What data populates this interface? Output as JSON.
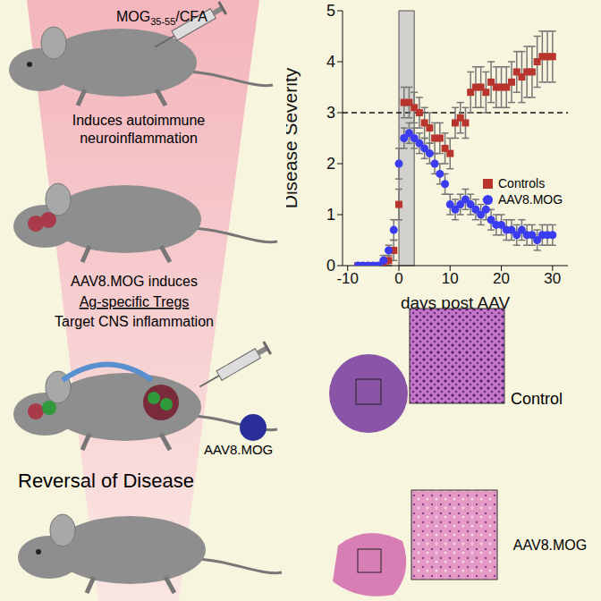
{
  "chart_data": {
    "type": "scatter",
    "xlabel": "days post AAV",
    "ylabel": "Disease Severity",
    "x": [
      -8,
      -7,
      -6,
      -5,
      -4,
      -3,
      -2,
      -1,
      0,
      1,
      2,
      3,
      4,
      5,
      6,
      7,
      8,
      9,
      10,
      11,
      12,
      13,
      14,
      15,
      16,
      17,
      18,
      19,
      20,
      21,
      22,
      23,
      24,
      25,
      26,
      27,
      28,
      29,
      30
    ],
    "xlim": [
      -11,
      33
    ],
    "xticks": [
      -10,
      0,
      10,
      20,
      30
    ],
    "ylim": [
      0,
      5
    ],
    "yticks": [
      0,
      1,
      2,
      3,
      4,
      5
    ],
    "hline": 3,
    "band": [
      0,
      3
    ],
    "legend": "right",
    "series": [
      {
        "name": "Controls",
        "color": "#b8342c",
        "marker": "square",
        "values": [
          0,
          0,
          0,
          0,
          0,
          0,
          0.1,
          0.3,
          1.2,
          3.2,
          3.2,
          3.1,
          3.0,
          2.8,
          2.7,
          2.5,
          2.5,
          2.3,
          2.2,
          2.8,
          2.9,
          2.8,
          3.4,
          3.5,
          3.5,
          3.4,
          3.6,
          3.5,
          3.5,
          3.5,
          3.6,
          3.8,
          3.7,
          3.8,
          3.8,
          4.0,
          4.1,
          4.1,
          4.1
        ],
        "errors": [
          0,
          0,
          0,
          0,
          0,
          0,
          0.1,
          0.2,
          0.3,
          0.3,
          0.3,
          0.3,
          0.3,
          0.3,
          0.3,
          0.3,
          0.3,
          0.3,
          0.3,
          0.3,
          0.3,
          0.3,
          0.4,
          0.4,
          0.4,
          0.4,
          0.4,
          0.4,
          0.4,
          0.4,
          0.4,
          0.4,
          0.5,
          0.5,
          0.5,
          0.5,
          0.5,
          0.5,
          0.5
        ]
      },
      {
        "name": "AAV8.MOG",
        "color": "#3b3bf0",
        "marker": "circle",
        "values": [
          0,
          0,
          0,
          0,
          0,
          0.1,
          0.3,
          0.7,
          2.0,
          2.5,
          2.6,
          2.5,
          2.4,
          2.3,
          2.2,
          2.0,
          1.8,
          1.6,
          1.2,
          1.1,
          1.2,
          1.3,
          1.2,
          1.1,
          1.0,
          1.1,
          0.9,
          0.8,
          0.8,
          0.7,
          0.7,
          0.6,
          0.7,
          0.6,
          0.6,
          0.5,
          0.6,
          0.6,
          0.6
        ],
        "errors": [
          0,
          0,
          0,
          0,
          0,
          0.1,
          0.1,
          0.2,
          0.3,
          0.2,
          0.2,
          0.2,
          0.2,
          0.2,
          0.2,
          0.2,
          0.2,
          0.2,
          0.2,
          0.2,
          0.2,
          0.2,
          0.2,
          0.2,
          0.2,
          0.2,
          0.2,
          0.2,
          0.2,
          0.2,
          0.2,
          0.2,
          0.2,
          0.2,
          0.2,
          0.2,
          0.2,
          0.2,
          0.2
        ]
      }
    ]
  },
  "diagram": {
    "injection": {
      "main": "MOG",
      "subscript": "35-55",
      "suffix": "/CFA"
    },
    "step1": [
      "Induces autoimmune",
      "neuroinflammation"
    ],
    "step2": {
      "line1": "AAV8.MOG induces",
      "line2": "Ag-specific Tregs",
      "line3": "Target CNS inflammation"
    },
    "vector_label": "AAV8.MOG",
    "outcome": "Reversal of Disease",
    "histology": [
      {
        "label": "Control"
      },
      {
        "label": "AAV8.MOG"
      }
    ]
  }
}
